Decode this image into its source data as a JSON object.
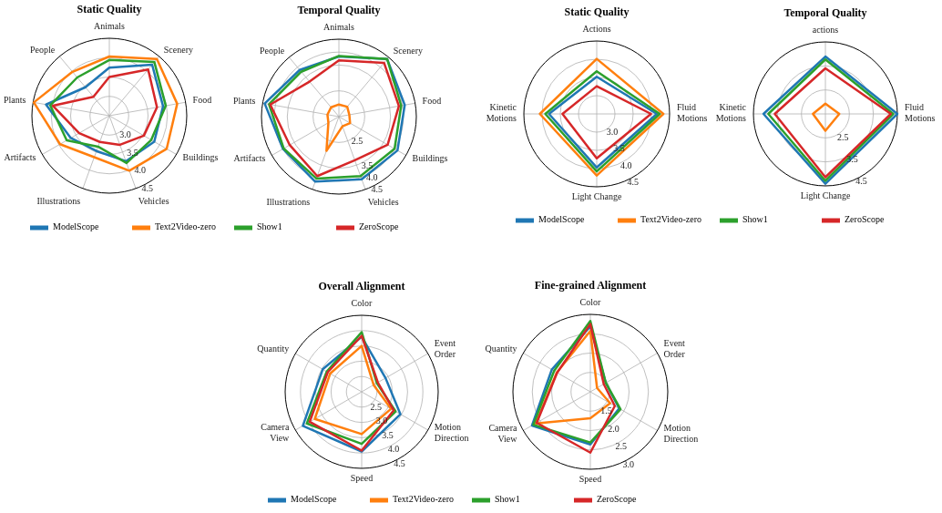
{
  "chart_data": [
    {
      "type": "radar",
      "title": "Static Quality",
      "categories": [
        "Animals",
        "Scenery",
        "Food",
        "Buildings",
        "Vehicles",
        "Illustrations",
        "Artifacts",
        "Plants",
        "People"
      ],
      "ylim": [
        2.5,
        4.5
      ],
      "yticks": [
        {
          "value": 3,
          "label": "3.0"
        },
        3.5,
        {
          "value": 4,
          "label": "4.0"
        },
        4.5
      ],
      "legend": "bottom",
      "grid": true,
      "series": [
        {
          "name": "ModelScope",
          "color": "#1f77b4",
          "values": [
            3.74,
            4.22,
            3.91,
            3.84,
            3.75,
            3.47,
            3.65,
            4.16,
            3.46
          ]
        },
        {
          "name": "Text2Video-zero",
          "color": "#ff7f0e",
          "values": [
            4.03,
            4.41,
            4.28,
            4.21,
            4.01,
            3.64,
            3.97,
            4.48,
            3.98
          ]
        },
        {
          "name": "Show1",
          "color": "#2ca02c",
          "values": [
            3.94,
            4.31,
            3.98,
            3.75,
            3.8,
            3.35,
            3.77,
            4.05,
            3.79
          ]
        },
        {
          "name": "ZeroScope",
          "color": "#d62728",
          "values": [
            3.5,
            4.06,
            3.75,
            3.53,
            3.3,
            3.22,
            3.4,
            3.98,
            3.14
          ]
        }
      ]
    },
    {
      "type": "radar",
      "title": "Temporal Quality",
      "categories": [
        "Animals",
        "Scenery",
        "Food",
        "Buildings",
        "Vehicles",
        "Illustrations",
        "Artifacts",
        "Plants",
        "People"
      ],
      "ylim": [
        1.5,
        4.5
      ],
      "yticks": [
        2.5,
        3.5,
        {
          "value": 4,
          "label": "4.0"
        },
        4.5
      ],
      "grid": true,
      "series": [
        {
          "color": "#1f77b4",
          "values": [
            3.83,
            4.41,
            4.09,
            4.12,
            4.08,
            4.18,
            4.0,
            4.42,
            3.86
          ]
        },
        {
          "color": "#ff7f0e",
          "values": [
            1.97,
            2.0,
            1.91,
            2.0,
            1.9,
            2.91,
            1.97,
            1.95,
            1.97
          ]
        },
        {
          "color": "#2ca02c",
          "values": [
            3.85,
            4.41,
            3.95,
            3.99,
            3.95,
            4.05,
            3.97,
            4.25,
            3.77
          ]
        },
        {
          "color": "#d62728",
          "values": [
            3.68,
            4.22,
            3.86,
            3.68,
            3.3,
            3.95,
            3.7,
            4.2,
            3.27
          ]
        }
      ]
    },
    {
      "type": "radar",
      "title": "Static Quality",
      "categories": [
        "Actions",
        "Fluid\nMotions",
        "Light Change",
        "Kinetic\nMotions"
      ],
      "ylim": [
        2.5,
        4.5
      ],
      "yticks": [
        {
          "value": 3,
          "label": "3.0"
        },
        3.5,
        {
          "value": 4,
          "label": "4.0"
        },
        4.5
      ],
      "legend": "bottom",
      "grid": true,
      "series": [
        {
          "name": "ModelScope",
          "color": "#1f77b4",
          "values": [
            3.52,
            4.15,
            3.97,
            3.81
          ]
        },
        {
          "name": "Text2Video-zero",
          "color": "#ff7f0e",
          "values": [
            4.01,
            4.33,
            4.19,
            4.06
          ]
        },
        {
          "name": "Show1",
          "color": "#2ca02c",
          "values": [
            3.67,
            4.23,
            4.08,
            3.91
          ]
        },
        {
          "name": "ZeroScope",
          "color": "#d62728",
          "values": [
            3.26,
            3.99,
            3.72,
            3.44
          ]
        }
      ]
    },
    {
      "type": "radar",
      "title": "Temporal Quality",
      "categories": [
        "actions",
        "Fluid\nMotions",
        "Light Change",
        "Kinetic\nMotions"
      ],
      "ylim": [
        1.5,
        4.5
      ],
      "yticks": [
        2.5,
        3.5,
        4.5
      ],
      "grid": true,
      "series": [
        {
          "color": "#1f77b4",
          "values": [
            3.89,
            4.5,
            4.41,
            4.08
          ]
        },
        {
          "color": "#ff7f0e",
          "values": [
            1.93,
            2.08,
            2.2,
            2.02
          ]
        },
        {
          "color": "#2ca02c",
          "values": [
            3.77,
            4.33,
            4.29,
            3.88
          ]
        },
        {
          "color": "#d62728",
          "values": [
            3.4,
            4.23,
            4.14,
            3.61
          ]
        }
      ]
    },
    {
      "type": "radar",
      "title": "Overall Alignment",
      "categories": [
        "Color",
        "Event\nOrder",
        "Motion\nDirection",
        "Speed",
        "Camera\nView",
        "Quantity"
      ],
      "ylim": [
        2.0,
        4.5
      ],
      "yticks": [
        2.5,
        {
          "value": 3,
          "label": "3.0"
        },
        3.5,
        {
          "value": 4,
          "label": "4.0"
        },
        4.5
      ],
      "legend": "bottom",
      "grid": true,
      "series": [
        {
          "name": "ModelScope",
          "color": "#1f77b4",
          "values": [
            3.8,
            2.9,
            3.46,
            3.95,
            4.22,
            3.47
          ]
        },
        {
          "name": "Text2Video-zero",
          "color": "#ff7f0e",
          "values": [
            3.5,
            2.45,
            3.11,
            3.38,
            3.77,
            3.19
          ]
        },
        {
          "name": "Show1",
          "color": "#2ca02c",
          "values": [
            3.95,
            2.57,
            3.28,
            3.7,
            4.07,
            3.32
          ]
        },
        {
          "name": "ZeroScope",
          "color": "#d62728",
          "values": [
            3.83,
            2.61,
            3.21,
            3.92,
            3.96,
            3.28
          ]
        }
      ]
    },
    {
      "type": "radar",
      "title": "Fine-grained Alignment",
      "categories": [
        "Color",
        "Event\nOrder",
        "Motion\nDirection",
        "Speed",
        "Camera\nView",
        "Quantity"
      ],
      "ylim": [
        1.0,
        3.0
      ],
      "yticks": [
        1.5,
        {
          "value": 2,
          "label": "2.0"
        },
        2.5,
        {
          "value": 3,
          "label": "3.0"
        }
      ],
      "grid": true,
      "series": [
        {
          "color": "#1f77b4",
          "values": [
            2.69,
            1.46,
            1.86,
            2.36,
            2.74,
            2.15
          ]
        },
        {
          "color": "#ff7f0e",
          "values": [
            2.57,
            1.2,
            1.59,
            1.68,
            2.63,
            2.0
          ]
        },
        {
          "color": "#2ca02c",
          "values": [
            2.83,
            1.46,
            1.9,
            2.31,
            2.7,
            2.08
          ]
        },
        {
          "color": "#d62728",
          "values": [
            2.75,
            1.4,
            1.73,
            2.57,
            2.6,
            1.99
          ]
        }
      ]
    }
  ]
}
